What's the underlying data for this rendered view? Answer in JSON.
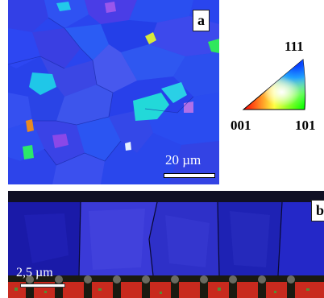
{
  "panel_a": {
    "tag": "a",
    "scale_bar": "20 µm"
  },
  "panel_b": {
    "tag": "b",
    "scale_bar": "2,5 µm"
  },
  "ipf_legend": {
    "corner_111": "111",
    "corner_001": "001",
    "corner_101": "101"
  },
  "colors": {
    "grain_blue": "#2a45f0",
    "grain_violet": "#5a3fe8",
    "grain_cyan": "#1fd6e6",
    "grain_green": "#2be86a",
    "grain_red": "#e03020",
    "background": "#ffffff"
  }
}
